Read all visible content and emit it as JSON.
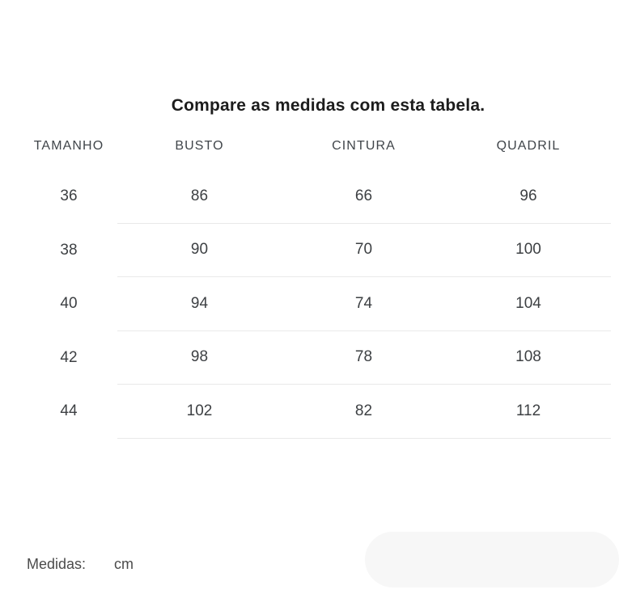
{
  "size_guide": {
    "title": "Compare as medidas com esta tabela.",
    "columns": [
      "TAMANHO",
      "BUSTO",
      "CINTURA",
      "QUADRIL"
    ],
    "rows": [
      [
        "36",
        "86",
        "66",
        "96"
      ],
      [
        "38",
        "90",
        "70",
        "100"
      ],
      [
        "40",
        "94",
        "74",
        "104"
      ],
      [
        "42",
        "98",
        "78",
        "108"
      ],
      [
        "44",
        "102",
        "82",
        "112"
      ]
    ],
    "footer": {
      "label": "Medidas:",
      "unit": "cm"
    },
    "colors": {
      "background": "#ffffff",
      "title_text": "#1c1c1c",
      "header_text": "#40454a",
      "cell_text": "#3d4043",
      "divider": "#e9e9e9",
      "footer_text": "#4b4b4b",
      "placeholder_pill": "#f7f7f7"
    }
  }
}
